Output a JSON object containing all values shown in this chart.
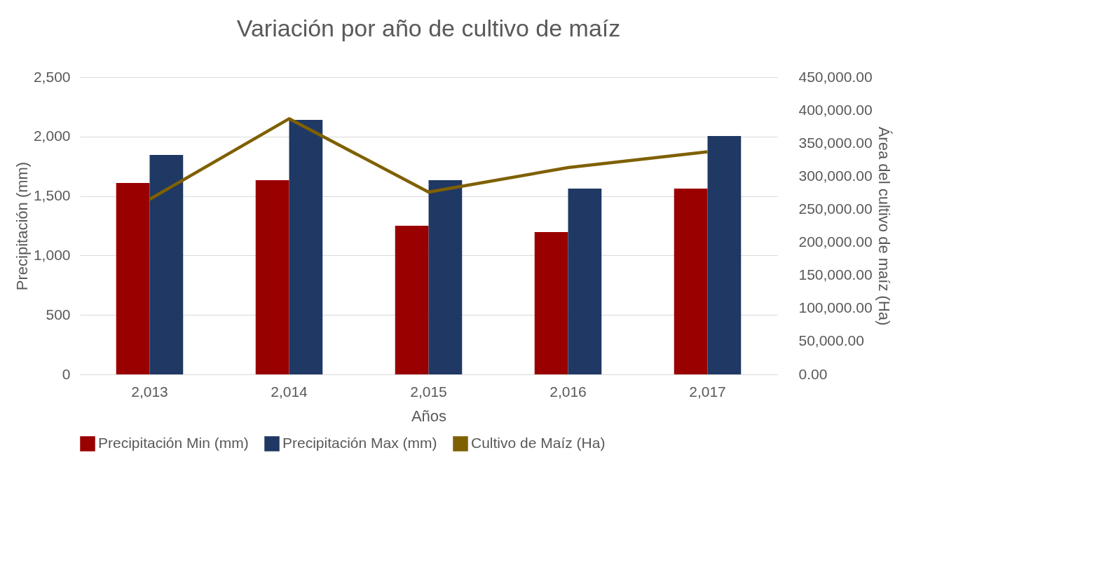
{
  "chart_data": {
    "type": "bar",
    "title": "Variación por año de cultivo de maíz",
    "xlabel": "Años",
    "ylabel": "Precipitación (mm)",
    "y2label": "Área del cultivo de maíz (Ha)",
    "categories": [
      "2,013",
      "2,014",
      "2,015",
      "2,016",
      "2,017"
    ],
    "series": [
      {
        "name": "Precipitación Min (mm)",
        "color": "#990000",
        "values": [
          1610,
          1633,
          1250,
          1197,
          1562
        ]
      },
      {
        "name": "Precipitación Max (mm)",
        "color": "#1f3864",
        "values": [
          1845,
          2140,
          1633,
          1562,
          2005
        ]
      },
      {
        "name": "Cultivo de   Maíz (Ha)",
        "color": "#7f6000",
        "type": "line",
        "axis": "y2",
        "values": [
          265000,
          387000,
          276000,
          313000,
          337000
        ]
      }
    ],
    "ylim": [
      0,
      2500
    ],
    "yticks": [
      0,
      500,
      {
        "value": 1000,
        "label": "1,000"
      },
      {
        "value": 1500,
        "label": "1,500"
      },
      {
        "value": 2000,
        "label": "2,000"
      },
      {
        "value": 2500,
        "label": "2,500"
      }
    ],
    "y2lim": [
      0,
      450000
    ],
    "y2ticks": [
      {
        "value": 0,
        "label": "0.00"
      },
      {
        "value": 50000,
        "label": "50,000.00"
      },
      {
        "value": 100000,
        "label": "100,000.00"
      },
      {
        "value": 150000,
        "label": "150,000.00"
      },
      {
        "value": 200000,
        "label": "200,000.00"
      },
      {
        "value": 250000,
        "label": "250,000.00"
      },
      {
        "value": 300000,
        "label": "300,000.00"
      },
      {
        "value": 350000,
        "label": "350,000.00"
      },
      {
        "value": 400000,
        "label": "400,000.00"
      },
      {
        "value": 450000,
        "label": "450,000.00"
      }
    ],
    "grid": "y",
    "legend": "bottom"
  }
}
